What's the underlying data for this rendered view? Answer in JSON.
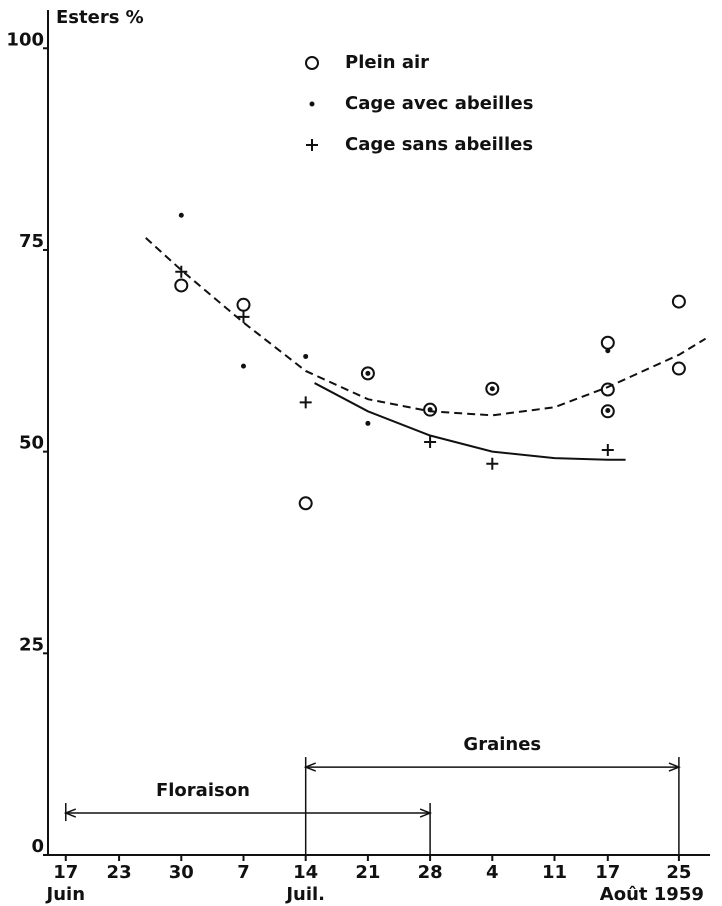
{
  "chart_data": {
    "type": "scatter",
    "y_label": "Esters %",
    "ylim": [
      0,
      104
    ],
    "yticks": [
      0,
      25,
      50,
      75,
      100
    ],
    "xlim": [
      15,
      89.5
    ],
    "xticks": [
      {
        "value": 17,
        "label": "17",
        "month": "Juin"
      },
      {
        "value": 23,
        "label": "23"
      },
      {
        "value": 30,
        "label": "30"
      },
      {
        "value": 37,
        "label": "7"
      },
      {
        "value": 44,
        "label": "14",
        "month": "Juil."
      },
      {
        "value": 51,
        "label": "21"
      },
      {
        "value": 58,
        "label": "28"
      },
      {
        "value": 65,
        "label": "4"
      },
      {
        "value": 72,
        "label": "11"
      },
      {
        "value": 78,
        "label": "17"
      },
      {
        "value": 86,
        "label": "25",
        "month": "Août 1959"
      }
    ],
    "legend": "top",
    "color": "#111111",
    "series": [
      {
        "name": "Plein air",
        "marker": "circle",
        "x": [
          30,
          37,
          44,
          51,
          58,
          65,
          78,
          78,
          78,
          86,
          86
        ],
        "values": [
          70.6,
          68.2,
          43.6,
          59.7,
          55.2,
          57.8,
          63.5,
          57.7,
          55,
          68.6,
          60.3
        ]
      },
      {
        "name": "Cage avec abeilles",
        "marker": "dot",
        "x": [
          30,
          37,
          44,
          51,
          51,
          58,
          65,
          78,
          78
        ],
        "values": [
          79.3,
          60.6,
          61.8,
          59.7,
          53.5,
          55.2,
          57.8,
          55.1,
          62.5
        ]
      },
      {
        "name": "Cage sans abeilles",
        "marker": "plus",
        "x": [
          30,
          37,
          44,
          58,
          65,
          78
        ],
        "values": [
          72.3,
          66.7,
          56.1,
          51.2,
          48.5,
          50.2
        ]
      }
    ],
    "curves": [
      {
        "style": "dashed",
        "x": [
          26,
          30,
          37,
          44,
          51,
          58,
          65,
          72,
          78,
          86,
          89
        ],
        "values": [
          76.5,
          72.5,
          66,
          60,
          56.5,
          55,
          54.5,
          55.5,
          58,
          62,
          64
        ]
      },
      {
        "style": "solid",
        "x": [
          45,
          51,
          58,
          65,
          72,
          78,
          80
        ],
        "values": [
          58.5,
          55,
          52,
          50,
          49.2,
          49,
          49
        ]
      }
    ],
    "ranges": [
      {
        "label": "Floraison",
        "x": [
          17,
          58
        ],
        "y": 5.2
      },
      {
        "label": "Graines",
        "x": [
          44,
          86
        ],
        "y": 10.9
      }
    ]
  }
}
